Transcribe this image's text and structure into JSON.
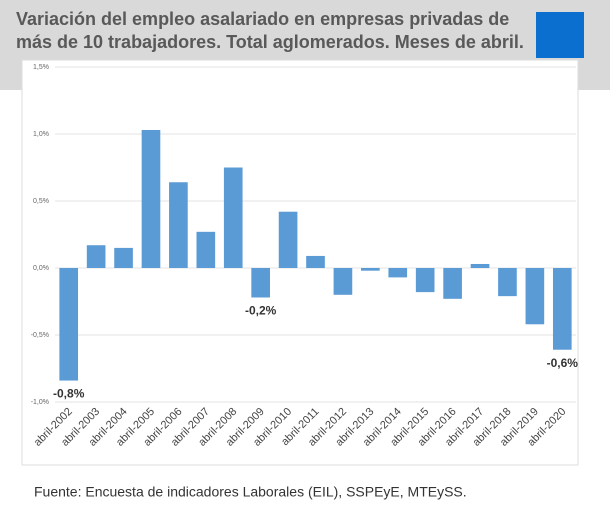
{
  "chart_data": {
    "type": "bar",
    "title": "Variación del empleo asalariado en empresas privadas de más de 10 trabajadores. Total aglomerados. Meses de abril.",
    "source": "Fuente: Encuesta de indicadores Laborales (EIL), SSPEyE, MTEySS.",
    "categories": [
      "abril-2002",
      "abril-2003",
      "abril-2004",
      "abril-2005",
      "abril-2006",
      "abril-2007",
      "abril-2008",
      "abril-2009",
      "abril-2010",
      "abril-2011",
      "abril-2012",
      "abril-2013",
      "abril-2014",
      "abril-2015",
      "abril-2016",
      "abril-2017",
      "abril-2018",
      "abril-2019",
      "abril-2020"
    ],
    "values": [
      -0.84,
      0.17,
      0.15,
      1.03,
      0.64,
      0.27,
      0.75,
      -0.22,
      0.42,
      0.09,
      -0.2,
      -0.02,
      -0.07,
      -0.18,
      -0.23,
      0.03,
      -0.21,
      -0.42,
      -0.61
    ],
    "value_labels": [
      "-0,8%",
      null,
      null,
      null,
      null,
      null,
      null,
      "-0,2%",
      null,
      null,
      null,
      null,
      null,
      null,
      null,
      null,
      null,
      null,
      "-0,6%"
    ],
    "color": "#5b9bd5",
    "ylim": [
      -1.0,
      1.5
    ],
    "yticks": [
      {
        "value": -1.0,
        "label": "-1,0%"
      },
      {
        "value": -0.5,
        "label": "-0,5%"
      },
      {
        "value": 0,
        "label": "0,0%"
      },
      {
        "value": 0.5,
        "label": "0,5%"
      },
      {
        "value": 1.0,
        "label": "1,0%"
      },
      {
        "value": 1.5,
        "label": "1,5%"
      }
    ],
    "grid": true
  }
}
